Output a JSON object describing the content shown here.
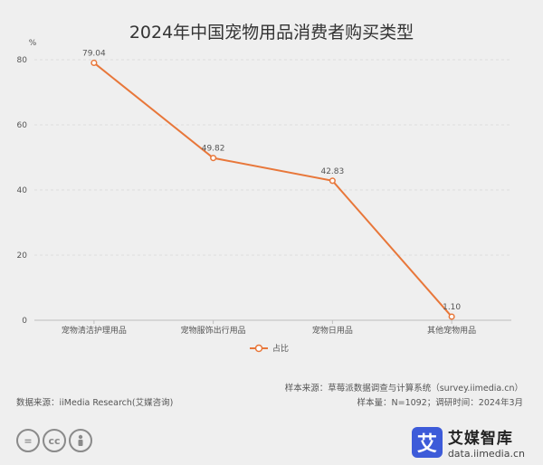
{
  "chart_data": {
    "type": "line",
    "title": "2024年中国宠物用品消费者购买类型",
    "unit": "%",
    "categories": [
      "宠物清洁护理用品",
      "宠物服饰出行用品",
      "宠物日用品",
      "其他宠物用品"
    ],
    "series": [
      {
        "name": "占比",
        "values": [
          79.04,
          49.82,
          42.83,
          1.1
        ],
        "labels": [
          "79.04",
          "49.82",
          "42.83",
          "1.10"
        ]
      }
    ],
    "ylim": [
      0,
      80
    ],
    "yticks": [
      0,
      20,
      40,
      60,
      80
    ],
    "grid": true,
    "legend": "bottom-center",
    "color": "#e8773a"
  },
  "footer": {
    "source_left": "数据来源：iiMedia Research(艾媒咨询)",
    "sample_source": "样本来源：草莓派数据调查与计算系统（survey.iimedia.cn）",
    "sample_size": "样本量：N=1092；调研时间：2024年3月"
  },
  "license_icons": [
    "equals-icon",
    "cc-icon",
    "person-icon"
  ],
  "brand": {
    "mark": "艾",
    "name": "艾媒智库",
    "url": "data.iimedia.cn"
  }
}
